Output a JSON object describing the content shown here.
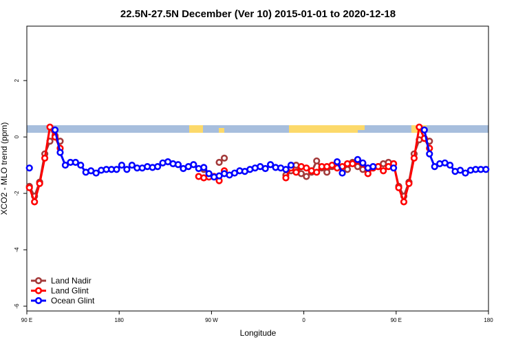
{
  "chart_data": {
    "type": "line",
    "title": "22.5N-27.5N December (Ver 10)   2015-01-01 to 2020-12-18",
    "x_label": "Longitude",
    "y_label": "XCO2 - MLO trend (ppm)",
    "xlim": [
      90,
      540
    ],
    "ylim": [
      -6.17,
      3.93
    ],
    "xticks": [
      {
        "value": 90,
        "label": "90 E"
      },
      180,
      {
        "value": 270,
        "label": "90 W"
      },
      {
        "value": 360,
        "label": "0"
      },
      {
        "value": 450,
        "label": "90 E"
      },
      {
        "value": 540,
        "label": "180"
      }
    ],
    "yticks": [
      2,
      0,
      -2,
      -4,
      -6
    ],
    "legend": "bottom-left",
    "series": [
      {
        "name": "Land Nadir",
        "color": "#a33a3a",
        "x": [
          92.5,
          97.5,
          102.5,
          107.5,
          112.5,
          117.5,
          122.5,
          125,
          262.5,
          265,
          277.5,
          282.5,
          285,
          342.5,
          347.5,
          352.5,
          357.5,
          362.5,
          367.5,
          372.5,
          377.5,
          382.5,
          387.5,
          390,
          402.5,
          407.5,
          412.5,
          417.5,
          422.5,
          427.5,
          432.5,
          437.5,
          442.5,
          447.5,
          452.5,
          457.5,
          462.5,
          467.5,
          472.5,
          477.5,
          482.5
        ],
        "values": [
          -1.75,
          -2.1,
          -1.6,
          -0.6,
          -0.15,
          0.05,
          -0.15,
          null,
          -1.15,
          null,
          -0.9,
          -0.75,
          null,
          -1.35,
          -1.2,
          -1.0,
          -1.3,
          -1.4,
          -1.25,
          -0.85,
          -1.1,
          -1.25,
          -1.05,
          null,
          -1.15,
          -0.9,
          -1.05,
          -1.15,
          -1.1,
          -1.1,
          -1.05,
          -0.95,
          -0.9,
          -0.95,
          -1.75,
          -2.1,
          -1.6,
          -0.6,
          -0.1,
          -0.05,
          -0.15
        ]
      },
      {
        "name": "Land Glint",
        "color": "#ff0000",
        "x": [
          92.5,
          97.5,
          102.5,
          107.5,
          112.5,
          117.5,
          122.5,
          125,
          257.5,
          262.5,
          267.5,
          272.5,
          277.5,
          282.5,
          285,
          342.5,
          347.5,
          352.5,
          357.5,
          362.5,
          367.5,
          372.5,
          377.5,
          382.5,
          387.5,
          392.5,
          397.5,
          402.5,
          407.5,
          412.5,
          417.5,
          422.5,
          427.5,
          432.5,
          437.5,
          442.5,
          447.5,
          452.5,
          457.5,
          462.5,
          467.5,
          472.5,
          477.5,
          482.5
        ],
        "values": [
          -1.8,
          -2.3,
          -1.65,
          -0.75,
          0.35,
          0.0,
          -0.4,
          null,
          -1.4,
          -1.45,
          -1.42,
          -1.4,
          -1.55,
          -1.2,
          null,
          -1.45,
          -1.1,
          -1.25,
          -1.05,
          -1.1,
          -1.2,
          -1.25,
          -1.05,
          -1.05,
          -1.0,
          -1.1,
          -1.05,
          -0.95,
          -0.95,
          -0.85,
          -0.95,
          -1.3,
          -1.1,
          -1.05,
          -1.2,
          -1.05,
          -0.95,
          -1.8,
          -2.3,
          -1.65,
          -0.75,
          0.35,
          -0.05,
          -0.4
        ]
      },
      {
        "name": "Ocean Glint",
        "color": "#0000ff",
        "x": [
          92.5,
          97.5,
          117.5,
          122.5,
          127.5,
          132.5,
          137.5,
          142.5,
          147.5,
          152.5,
          157.5,
          162.5,
          167.5,
          172.5,
          177.5,
          182.5,
          187.5,
          192.5,
          197.5,
          202.5,
          207.5,
          212.5,
          217.5,
          222.5,
          227.5,
          232.5,
          237.5,
          242.5,
          247.5,
          252.5,
          257.5,
          262.5,
          267.5,
          272.5,
          277.5,
          282.5,
          287.5,
          292.5,
          297.5,
          302.5,
          307.5,
          312.5,
          317.5,
          322.5,
          327.5,
          332.5,
          337.5,
          342.5,
          347.5,
          352.5,
          392.5,
          397.5,
          400,
          412.5,
          417.5,
          422.5,
          427.5,
          430,
          447.5,
          450,
          477.5,
          482.5,
          487.5,
          492.5,
          497.5,
          502.5,
          507.5,
          512.5,
          517.5,
          522.5,
          527.5,
          532.5,
          537.5
        ],
        "values": [
          -1.1,
          null,
          0.25,
          -0.55,
          -1.0,
          -0.9,
          -0.9,
          -1.0,
          -1.25,
          -1.2,
          -1.28,
          -1.18,
          -1.15,
          -1.15,
          -1.15,
          -1.0,
          -1.15,
          -1.0,
          -1.1,
          -1.1,
          -1.05,
          -1.08,
          -1.05,
          -0.92,
          -0.88,
          -0.95,
          -0.98,
          -1.12,
          -1.05,
          -0.98,
          -1.12,
          -1.08,
          -1.3,
          -1.42,
          -1.38,
          -1.3,
          -1.35,
          -1.28,
          -1.2,
          -1.22,
          -1.15,
          -1.1,
          -1.05,
          -1.12,
          -0.98,
          -1.08,
          -1.1,
          -1.15,
          -1.0,
          null,
          -0.88,
          -1.28,
          null,
          -0.8,
          -0.92,
          -1.1,
          -1.05,
          null,
          -1.1,
          null,
          0.25,
          -0.6,
          -1.05,
          -0.95,
          -0.92,
          -1.0,
          -1.22,
          -1.18,
          -1.28,
          -1.18,
          -1.15,
          -1.15,
          -1.15
        ]
      }
    ]
  }
}
